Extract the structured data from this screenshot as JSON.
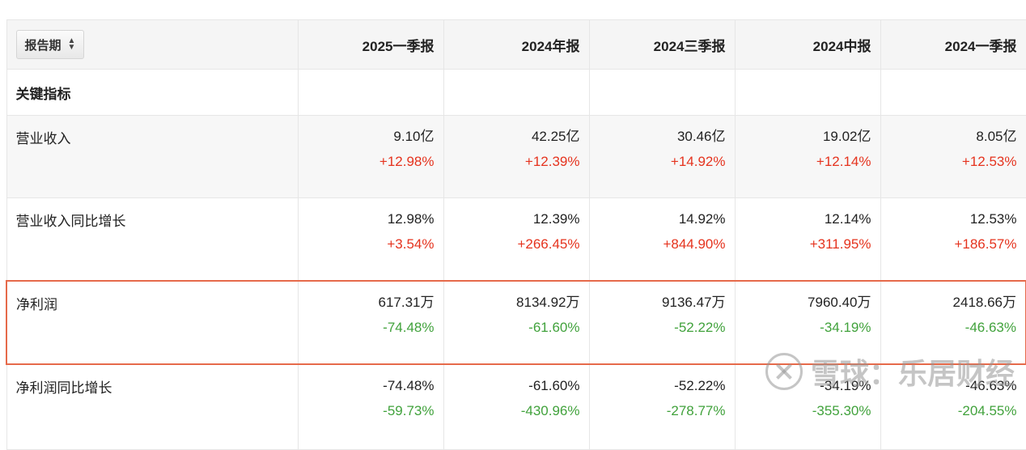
{
  "header": {
    "sort_label": "报告期",
    "periods": [
      "2025一季报",
      "2024年报",
      "2024三季报",
      "2024中报",
      "2024一季报"
    ]
  },
  "section": {
    "label": "关键指标"
  },
  "rows": [
    {
      "label": "营业收入",
      "values": [
        "9.10亿",
        "42.25亿",
        "30.46亿",
        "19.02亿",
        "8.05亿"
      ],
      "changes": [
        "+12.98%",
        "+12.39%",
        "+14.92%",
        "+12.14%",
        "+12.53%"
      ]
    },
    {
      "label": "营业收入同比增长",
      "values": [
        "12.98%",
        "12.39%",
        "14.92%",
        "12.14%",
        "12.53%"
      ],
      "changes": [
        "+3.54%",
        "+266.45%",
        "+844.90%",
        "+311.95%",
        "+186.57%"
      ]
    },
    {
      "label": "净利润",
      "values": [
        "617.31万",
        "8134.92万",
        "9136.47万",
        "7960.40万",
        "2418.66万"
      ],
      "changes": [
        "-74.48%",
        "-61.60%",
        "-52.22%",
        "-34.19%",
        "-46.63%"
      ]
    },
    {
      "label": "净利润同比增长",
      "values": [
        "-74.48%",
        "-61.60%",
        "-52.22%",
        "-34.19%",
        "-46.63%"
      ],
      "changes": [
        "-59.73%",
        "-430.96%",
        "-278.77%",
        "-355.30%",
        "-204.55%"
      ]
    }
  ],
  "watermark": {
    "text": "雪球：乐居财经"
  },
  "colors": {
    "positive": "#e5331e",
    "negative": "#41a23c",
    "highlight": "#e66a4a"
  }
}
